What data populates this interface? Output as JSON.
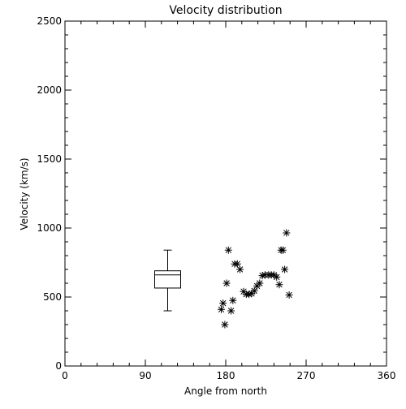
{
  "chart_data": {
    "type": "scatter",
    "title": "Velocity distribution",
    "xlabel": "Angle from north",
    "ylabel": "Velocity (km/s)",
    "xlim": [
      0,
      360
    ],
    "ylim": [
      0,
      2500
    ],
    "x_ticks": [
      0,
      90,
      180,
      270,
      360
    ],
    "y_ticks": [
      0,
      500,
      1000,
      1500,
      2000,
      2500
    ],
    "x_tick_labels": [
      "0",
      "90",
      "180",
      "270",
      "360"
    ],
    "y_tick_labels": [
      "0",
      "500",
      "1000",
      "1500",
      "2000",
      "2500"
    ],
    "x_minor_step": 18,
    "y_minor_step": 100,
    "grid": false,
    "marker": "asterisk",
    "series": [
      {
        "points": [
          [
            175,
            410
          ],
          [
            177,
            455
          ],
          [
            179,
            300
          ],
          [
            181,
            600
          ],
          [
            183,
            840
          ],
          [
            186,
            400
          ],
          [
            188,
            475
          ],
          [
            190,
            740
          ],
          [
            193,
            740
          ],
          [
            196,
            700
          ],
          [
            200,
            540
          ],
          [
            203,
            520
          ],
          [
            206,
            520
          ],
          [
            209,
            525
          ],
          [
            212,
            545
          ],
          [
            215,
            580
          ],
          [
            218,
            600
          ],
          [
            221,
            655
          ],
          [
            224,
            660
          ],
          [
            228,
            660
          ],
          [
            231,
            660
          ],
          [
            234,
            660
          ],
          [
            237,
            645
          ],
          [
            240,
            590
          ],
          [
            242,
            840
          ],
          [
            244,
            840
          ],
          [
            246,
            700
          ],
          [
            248,
            965
          ],
          [
            251,
            515
          ]
        ]
      }
    ],
    "boxplot": {
      "x": 115,
      "min": 400,
      "q1": 565,
      "median": 660,
      "q3": 690,
      "max": 840
    }
  }
}
